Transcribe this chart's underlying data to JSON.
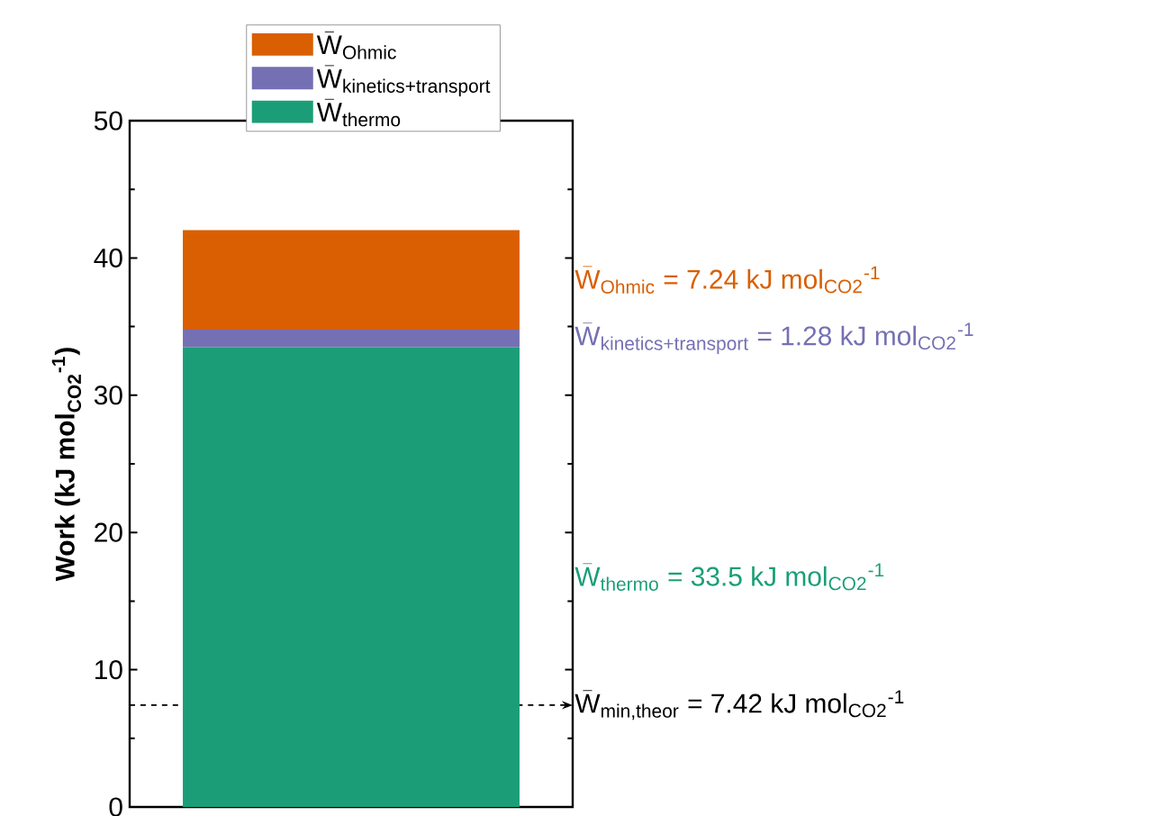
{
  "chart_data": {
    "type": "bar",
    "stacked": true,
    "ylabel": "\\text{Work (kJ mol}_{\\text{CO2}}{}^{\\text{-1}}\\text{)}",
    "categories": [
      null
    ],
    "series": [
      {
        "name": "\\bar{\\text{W}}_{\\text{thermo}}",
        "color": "#1b9e77",
        "values": [
          33.5
        ]
      },
      {
        "name": "\\bar{\\text{W}}_{\\text{kinetics+transport}}",
        "color": "#7570b3",
        "values": [
          1.28
        ]
      },
      {
        "name": "\\bar{\\text{W}}_{\\text{Ohmic}}",
        "color": "#d95f02",
        "values": [
          7.24
        ]
      }
    ],
    "ylim": [
      0,
      50
    ],
    "yticks": [
      0,
      10,
      20,
      30,
      40,
      50
    ],
    "tick_labels": "y",
    "legend": "top",
    "annotations": [
      "\\bar{\\text{W}}_{\\text{Ohmic}}\\text{ = 7.24 kJ mol}_{\\text{CO2}}{}^{\\text{-1}}",
      "\\bar{\\text{W}}_{\\text{kinetics+transport}}\\text{ = 1.28 kJ mol}_{\\text{CO2}}{}^{\\text{-1}}",
      "\\bar{\\text{W}}_{\\text{thermo}}\\text{ = 33.5 kJ mol}_{\\text{CO2}}{}^{\\text{-1}}"
    ],
    "ref_lines": [
      {
        "axis": "y",
        "value": 7.42,
        "label": "\\bar{\\text{W}}_{\\text{min,theor}}\\text{ = 7.42 kJ mol}_{\\text{CO2}}{}^{\\text{-1}}",
        "color": "#000000",
        "line_style": "dashed"
      }
    ]
  }
}
